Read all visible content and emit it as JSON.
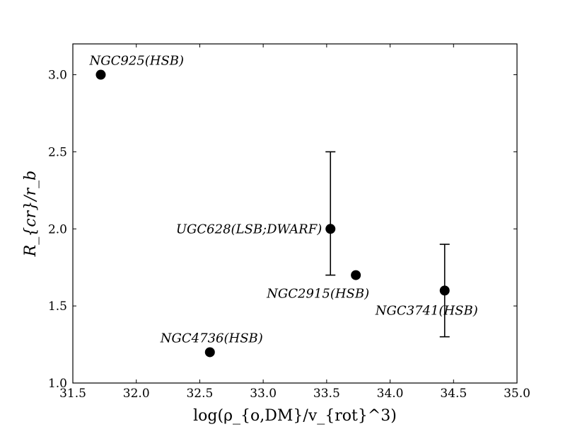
{
  "chart_data": {
    "type": "scatter",
    "title": "",
    "xlabel": "log(ρ_{o,DM}/v_{rot}^3)",
    "ylabel": "R_{cr}/r_b",
    "xlim": [
      31.5,
      35.0
    ],
    "ylim": [
      1.0,
      3.2
    ],
    "xticks": [
      31.5,
      32.0,
      32.5,
      33.0,
      33.5,
      34.0,
      34.5,
      35.0
    ],
    "xtick_labels": [
      "31.5",
      "32.0",
      "32.5",
      "33.0",
      "33.5",
      "34.0",
      "34.5",
      "35.0"
    ],
    "yticks": [
      1.0,
      1.5,
      2.0,
      2.5,
      3.0
    ],
    "ytick_labels": [
      "1.0",
      "1.5",
      "2.0",
      "2.5",
      "3.0"
    ],
    "grid": false,
    "points": [
      {
        "label": "NGC925(HSB)",
        "x": 31.72,
        "y": 3.0,
        "err": null
      },
      {
        "label": "UGC628(LSB;DWARF)",
        "x": 33.53,
        "y": 2.0,
        "err": [
          1.7,
          2.5
        ]
      },
      {
        "label": "NGC2915(HSB)",
        "x": 33.73,
        "y": 1.7,
        "err": null
      },
      {
        "label": "NGC3741(HSB)",
        "x": 34.43,
        "y": 1.6,
        "err": [
          1.3,
          1.9
        ]
      },
      {
        "label": "NGC4736(HSB)",
        "x": 32.58,
        "y": 1.2,
        "err": null
      }
    ]
  }
}
